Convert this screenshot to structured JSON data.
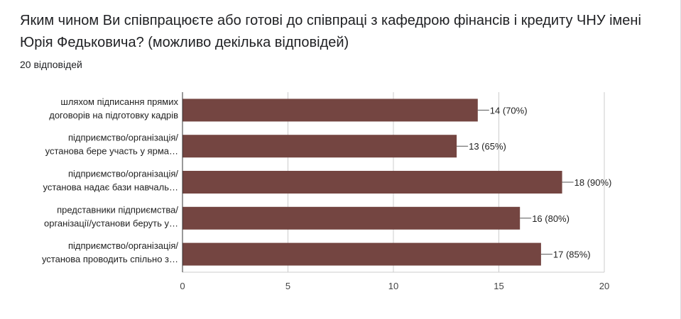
{
  "question": {
    "title": "Яким чином Ви співпрацюєте або готові до співпраці з кафедрою фінансів і кредиту ЧНУ імені Юрія Федьковича? (можливо декілька відповідей)",
    "response_count": "20 відповідей"
  },
  "colors": {
    "bar": "#744541",
    "grid": "#cccccc",
    "axis": "#333333"
  },
  "chart_data": {
    "type": "bar",
    "orientation": "horizontal",
    "categories": [
      [
        "шляхом підписання прямих",
        "договорів на підготовку кадрів"
      ],
      [
        "підприємство/організація/",
        "установа бере участь у ярма…"
      ],
      [
        "підприємство/організація/",
        "установа надає бази навчаль…"
      ],
      [
        "представники підприємства/",
        "організації/установи беруть у…"
      ],
      [
        "підприємство/організація/",
        "установа проводить спільно з…"
      ]
    ],
    "values": [
      14,
      13,
      18,
      16,
      17
    ],
    "data_labels": [
      "14 (70%)",
      "13 (65%)",
      "18 (90%)",
      "16 (80%)",
      "17 (85%)"
    ],
    "xlim": [
      0,
      20
    ],
    "xticks": [
      "0",
      "5",
      "10",
      "15",
      "20"
    ],
    "grid": true
  }
}
